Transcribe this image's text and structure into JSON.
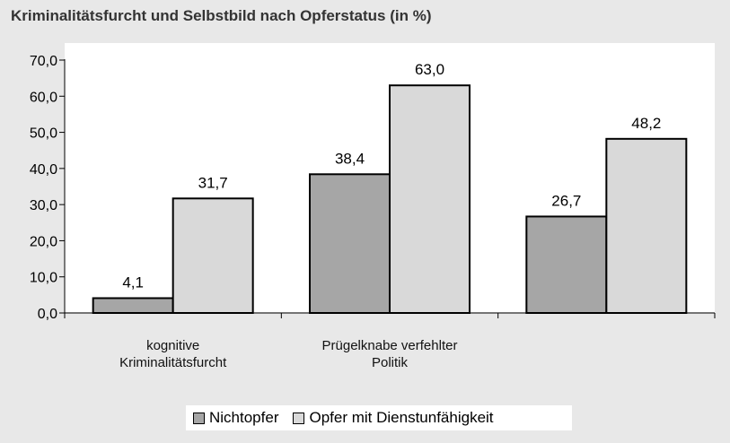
{
  "chart_data": {
    "type": "bar",
    "title": "Kriminalitätsfurcht und Selbstbild nach Opferstatus (in %)",
    "categories": [
      [
        "kognitive",
        "Kriminalitätsfurcht"
      ],
      [
        "Prügelknabe verfehlter",
        "Politik"
      ],
      []
    ],
    "series": [
      {
        "name": "Nichtopfer",
        "values": [
          4.1,
          38.4,
          26.7
        ],
        "labels": [
          "4,1",
          "38,4",
          "26,7"
        ],
        "color": "#a6a6a6"
      },
      {
        "name": "Opfer mit Dienstunfähigkeit",
        "values": [
          31.7,
          63.0,
          48.2
        ],
        "labels": [
          "31,7",
          "63,0",
          "48,2"
        ],
        "color": "#d9d9d9"
      }
    ],
    "ylim": [
      0,
      70
    ],
    "yticks": [
      0,
      10,
      20,
      30,
      40,
      50,
      60,
      70
    ],
    "ytick_labels": [
      "0,0",
      "10,0",
      "20,0",
      "30,0",
      "40,0",
      "50,0",
      "60,0",
      "70,0"
    ],
    "grid": false,
    "legend_position": "bottom-center",
    "xlabel": "",
    "ylabel": ""
  }
}
